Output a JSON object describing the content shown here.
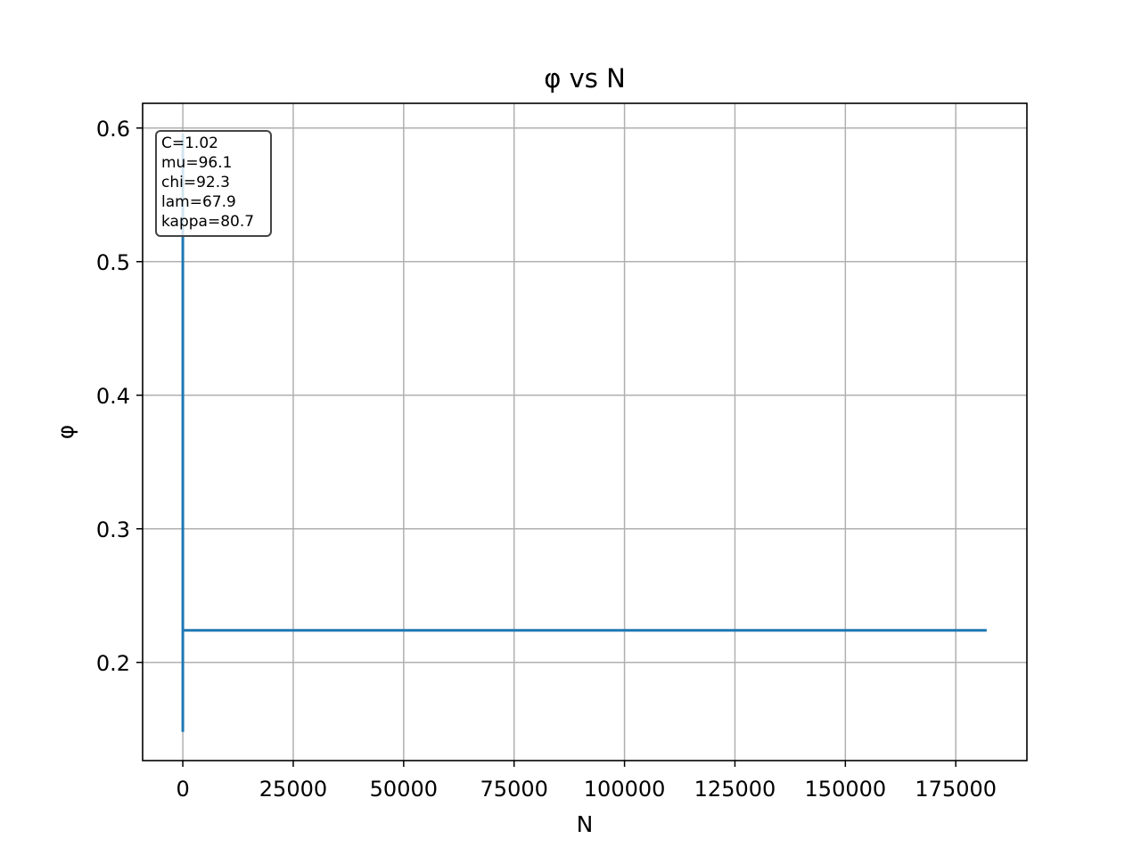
{
  "chart_data": {
    "type": "line",
    "title": "φ vs N",
    "xlabel": "N",
    "ylabel": "φ",
    "xlim": [
      -9100,
      191100
    ],
    "ylim": [
      0.1265,
      0.6185
    ],
    "xticks": [
      0,
      25000,
      50000,
      75000,
      100000,
      125000,
      150000,
      175000
    ],
    "xtick_labels": [
      "0",
      "25000",
      "50000",
      "75000",
      "100000",
      "125000",
      "150000",
      "175000"
    ],
    "yticks": [
      0.2,
      0.3,
      0.4,
      0.5,
      0.6
    ],
    "ytick_labels": [
      "0.2",
      "0.3",
      "0.4",
      "0.5",
      "0.6"
    ],
    "grid": true,
    "series": [
      {
        "color": "#1f77b4",
        "x": [
          0,
          0,
          0,
          200,
          1000,
          50000,
          100000,
          150000,
          182000
        ],
        "y": [
          0.148,
          0.595,
          0.224,
          0.224,
          0.224,
          0.224,
          0.224,
          0.224,
          0.224
        ]
      }
    ],
    "annotation": {
      "position": "top-left",
      "lines": [
        "C=1.02",
        "mu=96.1",
        "chi=92.3",
        "lam=67.9",
        "kappa=80.7"
      ]
    }
  }
}
